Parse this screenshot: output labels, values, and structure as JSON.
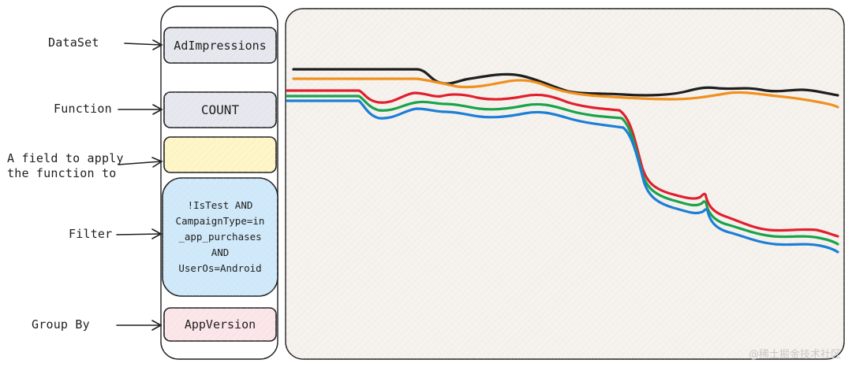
{
  "labels": {
    "dataset": "DataSet",
    "function": "Function",
    "field_line1": "A field to apply",
    "field_line2": "the function to",
    "filter": "Filter",
    "group_by": "Group By"
  },
  "boxes": {
    "dataset": "AdImpressions",
    "function": "COUNT",
    "field": "",
    "filter": "!IsTest AND\nCampaignType=in\n_app_purchases\nAND\nUserOs=Android",
    "group_by": "AppVersion"
  },
  "colors": {
    "dataset_fill": "#e6e8f0",
    "function_fill": "#e6e8f0",
    "field_fill": "#fff6c8",
    "filter_fill": "#cfeafc",
    "group_fill": "#fde6ea",
    "chart_bg": "#f6f3ef",
    "line_black": "#1e1e1e",
    "line_orange": "#f0901e",
    "line_red": "#e0202e",
    "line_green": "#1aa34a",
    "line_blue": "#1c7ed6"
  },
  "watermark": "@稀土掘金技术社区"
}
